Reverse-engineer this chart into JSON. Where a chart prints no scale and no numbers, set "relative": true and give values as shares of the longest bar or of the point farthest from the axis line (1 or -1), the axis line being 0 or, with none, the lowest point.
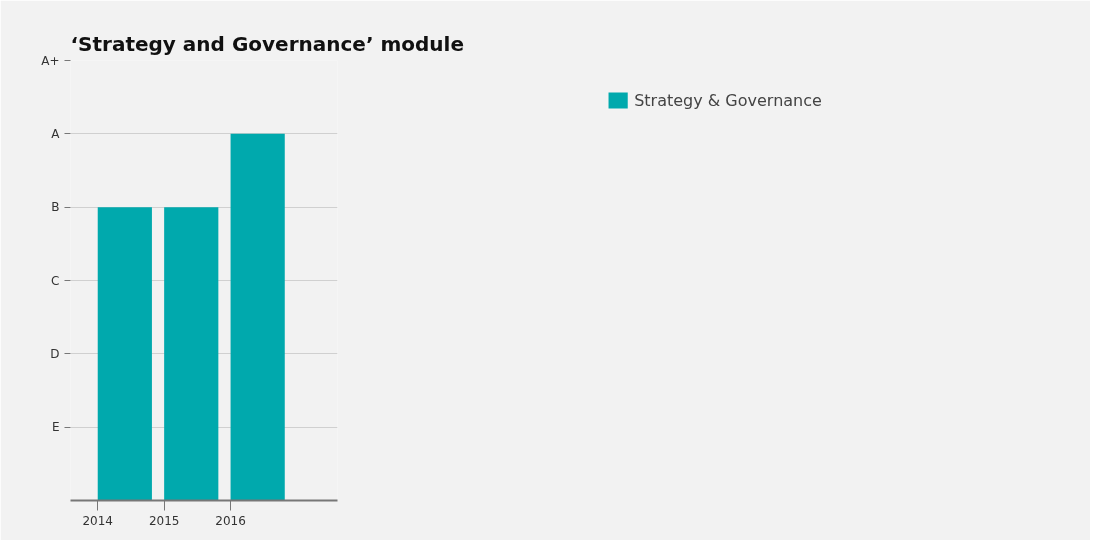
{
  "chart_data": {
    "type": "bar",
    "title": "‘Strategy and Governance’ module",
    "categories": [
      "2014",
      "2015",
      "2016"
    ],
    "series": [
      {
        "name": "Strategy & Governance",
        "color": "#00a9ad",
        "values": [
          0.8,
          0.8,
          1
        ]
      }
    ],
    "relative": true,
    "annotations": [
      "E",
      "D",
      "C",
      "B",
      "A",
      "A+"
    ],
    "grid": "y",
    "legend": "top right"
  }
}
